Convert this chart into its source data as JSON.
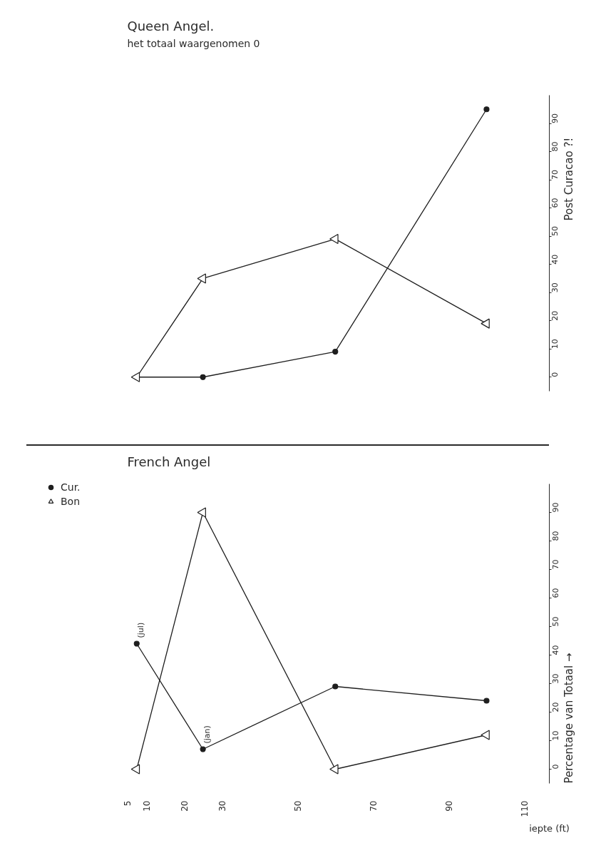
{
  "chart_data": [
    {
      "type": "line",
      "title": "Queen Angel.",
      "subtitle": "het totaal waargenomen 0",
      "ylabel": "Post Curacao ?!",
      "xlim": [
        5,
        110
      ],
      "ylim": [
        -5,
        100
      ],
      "yticks": [
        0,
        10,
        20,
        30,
        40,
        50,
        60,
        70,
        80,
        90
      ],
      "tick_labels": "y",
      "series": [
        {
          "color": "#1e1e1e",
          "marker": "circle",
          "x": [
            7.5,
            25,
            60,
            100
          ],
          "values": [
            0,
            0,
            9,
            95
          ]
        },
        {
          "color": "#1e1e1e",
          "marker": "triangle",
          "x": [
            7.5,
            25,
            60,
            100
          ],
          "values": [
            0,
            35,
            49,
            19
          ]
        }
      ]
    },
    {
      "type": "line",
      "title": "French Angel",
      "xlabel": "iepte (ft)",
      "ylabel": "Percentage van Totaal →",
      "xlim": [
        5,
        110
      ],
      "xticks": [
        5,
        10,
        20,
        30,
        50,
        70,
        90,
        110
      ],
      "ylim": [
        -5,
        100
      ],
      "yticks": [
        0,
        10,
        20,
        30,
        40,
        50,
        60,
        70,
        80,
        90
      ],
      "legend": "top left",
      "series": [
        {
          "name": "Cur.",
          "color": "#1e1e1e",
          "marker": "circle",
          "x": [
            7.5,
            25,
            60,
            100
          ],
          "values": [
            44,
            7,
            29,
            24
          ]
        },
        {
          "name": "Bon",
          "color": "#1e1e1e",
          "marker": "triangle",
          "x": [
            7.5,
            25,
            60,
            100
          ],
          "values": [
            0,
            90,
            0,
            12
          ]
        }
      ],
      "annotations": [
        {
          "text": "(jul)",
          "x": 7.5,
          "y": 44
        },
        {
          "text": "(jan)",
          "x": 25,
          "y": 7
        }
      ]
    }
  ]
}
